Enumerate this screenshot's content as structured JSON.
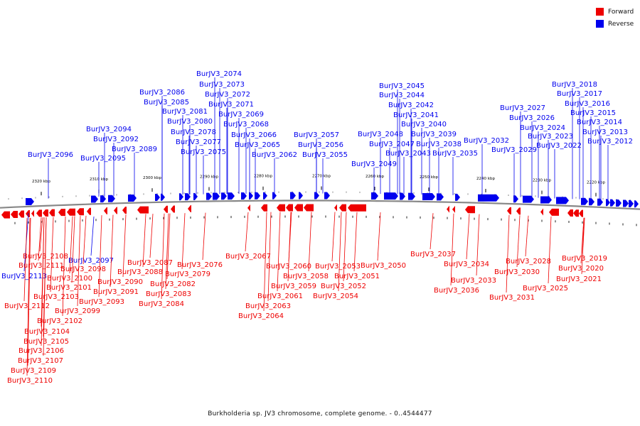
{
  "legend": {
    "forward": {
      "label": "Forward",
      "color": "#ee0000"
    },
    "reverse": {
      "label": "Reverse",
      "color": "#0000ee"
    }
  },
  "caption": "Burkholderia sp. JV3 chromosome, complete genome. - 0..4544477",
  "scale_labels": [
    "2320 kbp",
    "2310 kbp",
    "2300 kbp",
    "2290 kbp",
    "2280 kbp",
    "2270 kbp",
    "2260 kbp",
    "2250 kbp",
    "2240 kbp",
    "2230 kbp",
    "2220 kbp"
  ],
  "reverse_genes": [
    "BurJV3_2074",
    "BurJV3_2073",
    "BurJV3_2072",
    "BurJV3_2071",
    "BurJV3_2069",
    "BurJV3_2068",
    "BurJV3_2066",
    "BurJV3_2065",
    "BurJV3_2086",
    "BurJV3_2085",
    "BurJV3_2081",
    "BurJV3_2080",
    "BurJV3_2078",
    "BurJV3_2077",
    "BurJV3_2075",
    "BurJV3_2094",
    "BurJV3_2092",
    "BurJV3_2089",
    "BurJV3_2095",
    "BurJV3_2096",
    "BurJV3_2057",
    "BurJV3_2056",
    "BurJV3_2055",
    "BurJV3_2062",
    "BurJV3_2045",
    "BurJV3_2044",
    "BurJV3_2042",
    "BurJV3_2041",
    "BurJV3_2040",
    "BurJV3_2048",
    "BurJV3_2039",
    "BurJV3_2047",
    "BurJV3_2038",
    "BurJV3_2043",
    "BurJV3_2035",
    "BurJV3_2049",
    "BurJV3_2032",
    "BurJV3_2027",
    "BurJV3_2026",
    "BurJV3_2024",
    "BurJV3_2023",
    "BurJV3_2029",
    "BurJV3_2022",
    "BurJV3_2018",
    "BurJV3_2017",
    "BurJV3_2016",
    "BurJV3_2015",
    "BurJV3_2014",
    "BurJV3_2013",
    "BurJV3_2012",
    "BurJV3_2097",
    "BurJV3_2113"
  ],
  "forward_genes": [
    "BurJV3_2108",
    "BurJV3_2111",
    "BurJV3_2100",
    "BurJV3_2101",
    "BurJV3_2103",
    "BurJV3_2112",
    "BurJV3_2099",
    "BurJV3_2102",
    "BurJV3_2104",
    "BurJV3_2105",
    "BurJV3_2106",
    "BurJV3_2107",
    "BurJV3_2109",
    "BurJV3_2110",
    "BurJV3_2098",
    "BurJV3_2090",
    "BurJV3_2091",
    "BurJV3_2093",
    "BurJV3_2087",
    "BurJV3_2088",
    "BurJV3_2082",
    "BurJV3_2083",
    "BurJV3_2084",
    "BurJV3_2076",
    "BurJV3_2079",
    "BurJV3_2067",
    "BurJV3_2060",
    "BurJV3_2058",
    "BurJV3_2059",
    "BurJV3_2061",
    "BurJV3_2063",
    "BurJV3_2064",
    "BurJV3_2053",
    "BurJV3_2051",
    "BurJV3_2052",
    "BurJV3_2054",
    "BurJV3_2050",
    "BurJV3_2037",
    "BurJV3_2034",
    "BurJV3_2033",
    "BurJV3_2036",
    "BurJV3_2028",
    "BurJV3_2030",
    "BurJV3_2025",
    "BurJV3_2031",
    "BurJV3_2019",
    "BurJV3_2020",
    "BurJV3_2021"
  ]
}
